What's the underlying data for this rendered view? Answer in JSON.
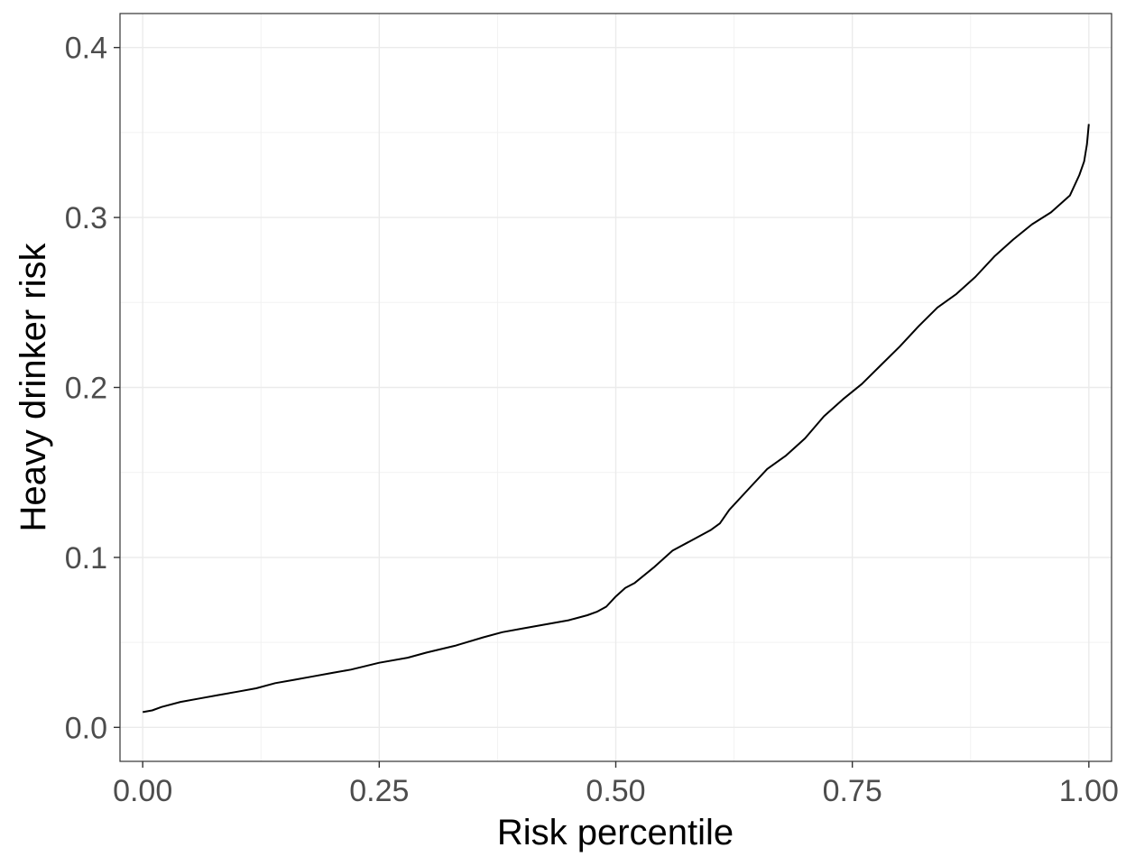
{
  "chart_data": {
    "type": "line",
    "title": "",
    "xlabel": "Risk percentile",
    "ylabel": "Heavy drinker risk",
    "xlim": [
      -0.024,
      1.024
    ],
    "ylim": [
      -0.02,
      0.42
    ],
    "x_ticks": [
      0.0,
      0.25,
      0.5,
      0.75,
      1.0
    ],
    "x_tick_labels": [
      "0.00",
      "0.25",
      "0.50",
      "0.75",
      "1.00"
    ],
    "y_ticks": [
      0.0,
      0.1,
      0.2,
      0.3,
      0.4
    ],
    "y_tick_labels": [
      "0.0",
      "0.1",
      "0.2",
      "0.3",
      "0.4"
    ],
    "grid": true,
    "legend": "none",
    "line_color": "#000000",
    "series": [
      {
        "x": [
          0.0,
          0.01,
          0.02,
          0.04,
          0.06,
          0.08,
          0.1,
          0.12,
          0.14,
          0.16,
          0.18,
          0.2,
          0.22,
          0.25,
          0.28,
          0.3,
          0.33,
          0.36,
          0.38,
          0.4,
          0.43,
          0.45,
          0.47,
          0.48,
          0.49,
          0.5,
          0.51,
          0.52,
          0.54,
          0.56,
          0.58,
          0.6,
          0.61,
          0.62,
          0.64,
          0.66,
          0.68,
          0.7,
          0.72,
          0.74,
          0.76,
          0.78,
          0.8,
          0.82,
          0.84,
          0.86,
          0.88,
          0.9,
          0.92,
          0.94,
          0.96,
          0.98,
          0.99,
          0.995,
          0.998,
          1.0
        ],
        "y": [
          0.009,
          0.01,
          0.012,
          0.015,
          0.017,
          0.019,
          0.021,
          0.023,
          0.026,
          0.028,
          0.03,
          0.032,
          0.034,
          0.038,
          0.041,
          0.044,
          0.048,
          0.053,
          0.056,
          0.058,
          0.061,
          0.063,
          0.066,
          0.068,
          0.071,
          0.077,
          0.082,
          0.085,
          0.094,
          0.104,
          0.11,
          0.116,
          0.12,
          0.128,
          0.14,
          0.152,
          0.16,
          0.17,
          0.183,
          0.193,
          0.202,
          0.213,
          0.224,
          0.236,
          0.247,
          0.255,
          0.265,
          0.277,
          0.287,
          0.296,
          0.303,
          0.313,
          0.325,
          0.333,
          0.343,
          0.355
        ]
      }
    ]
  }
}
